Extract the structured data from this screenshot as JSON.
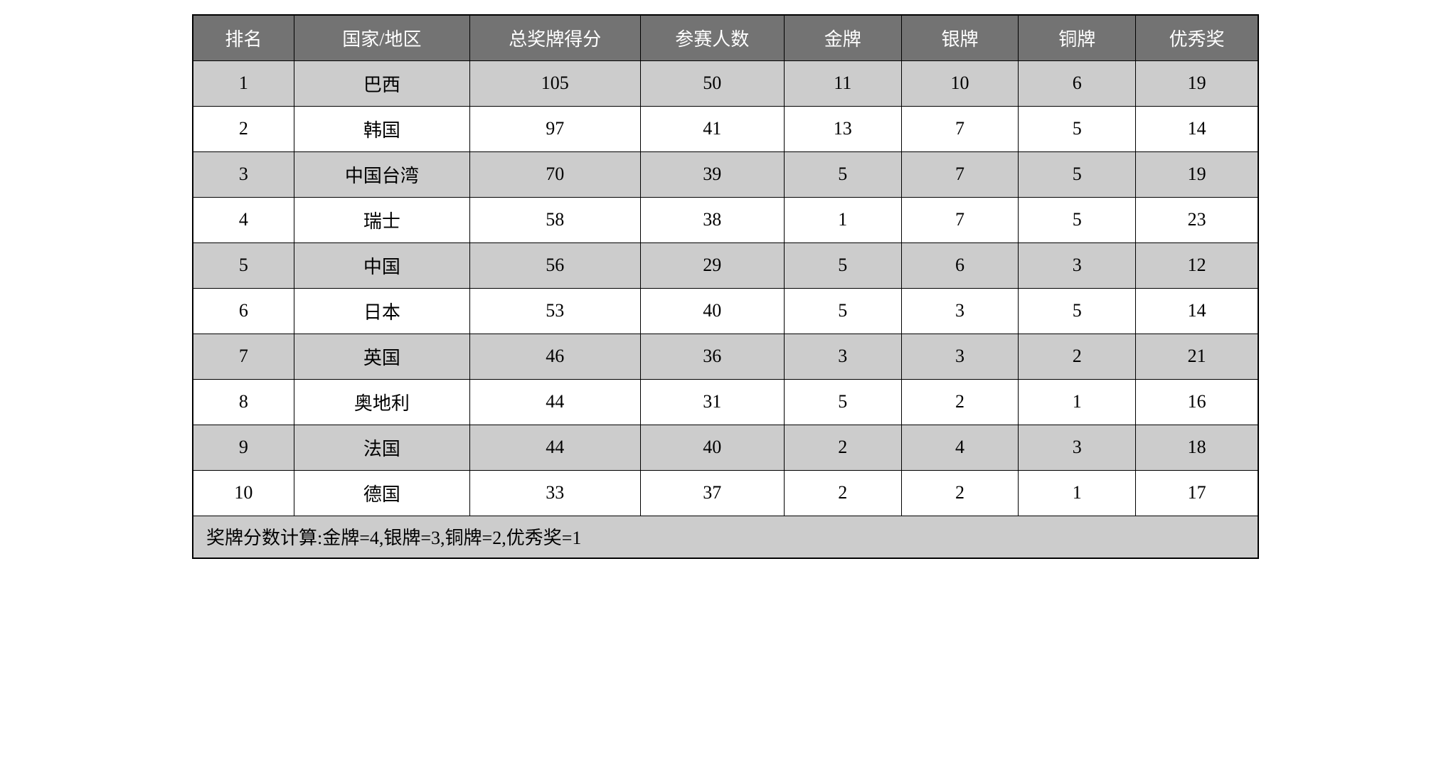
{
  "table": {
    "type": "table",
    "header_bg_color": "#737373",
    "header_text_color": "#ffffff",
    "odd_row_bg_color": "#cccccc",
    "even_row_bg_color": "#ffffff",
    "border_color": "#000000",
    "font_family": "SimSun",
    "font_size": 26,
    "columns": [
      {
        "key": "rank",
        "label": "排名",
        "width_pct": 9.5
      },
      {
        "key": "country",
        "label": "国家/地区",
        "width_pct": 16.5
      },
      {
        "key": "score",
        "label": "总奖牌得分",
        "width_pct": 16
      },
      {
        "key": "participants",
        "label": "参赛人数",
        "width_pct": 13.5
      },
      {
        "key": "gold",
        "label": "金牌",
        "width_pct": 11
      },
      {
        "key": "silver",
        "label": "银牌",
        "width_pct": 11
      },
      {
        "key": "bronze",
        "label": "铜牌",
        "width_pct": 11
      },
      {
        "key": "excellence",
        "label": "优秀奖",
        "width_pct": 11.5
      }
    ],
    "rows": [
      {
        "rank": "1",
        "country": "巴西",
        "score": "105",
        "participants": "50",
        "gold": "11",
        "silver": "10",
        "bronze": "6",
        "excellence": "19"
      },
      {
        "rank": "2",
        "country": "韩国",
        "score": "97",
        "participants": "41",
        "gold": "13",
        "silver": "7",
        "bronze": "5",
        "excellence": "14"
      },
      {
        "rank": "3",
        "country": "中国台湾",
        "score": "70",
        "participants": "39",
        "gold": "5",
        "silver": "7",
        "bronze": "5",
        "excellence": "19"
      },
      {
        "rank": "4",
        "country": "瑞士",
        "score": "58",
        "participants": "38",
        "gold": "1",
        "silver": "7",
        "bronze": "5",
        "excellence": "23"
      },
      {
        "rank": "5",
        "country": "中国",
        "score": "56",
        "participants": "29",
        "gold": "5",
        "silver": "6",
        "bronze": "3",
        "excellence": "12"
      },
      {
        "rank": "6",
        "country": "日本",
        "score": "53",
        "participants": "40",
        "gold": "5",
        "silver": "3",
        "bronze": "5",
        "excellence": "14"
      },
      {
        "rank": "7",
        "country": "英国",
        "score": "46",
        "participants": "36",
        "gold": "3",
        "silver": "3",
        "bronze": "2",
        "excellence": "21"
      },
      {
        "rank": "8",
        "country": "奥地利",
        "score": "44",
        "participants": "31",
        "gold": "5",
        "silver": "2",
        "bronze": "1",
        "excellence": "16"
      },
      {
        "rank": "9",
        "country": "法国",
        "score": "44",
        "participants": "40",
        "gold": "2",
        "silver": "4",
        "bronze": "3",
        "excellence": "18"
      },
      {
        "rank": "10",
        "country": "德国",
        "score": "33",
        "participants": "37",
        "gold": "2",
        "silver": "2",
        "bronze": "1",
        "excellence": "17"
      }
    ],
    "footer_note": "奖牌分数计算:金牌=4,银牌=3,铜牌=2,优秀奖=1"
  }
}
